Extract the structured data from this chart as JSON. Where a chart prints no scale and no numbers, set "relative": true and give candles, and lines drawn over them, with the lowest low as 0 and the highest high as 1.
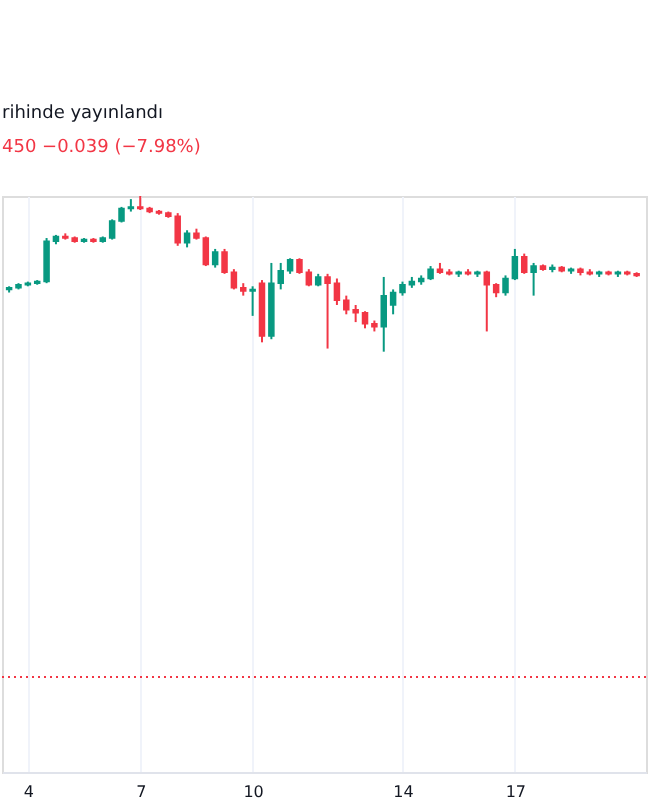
{
  "chart_data": {
    "type": "candlestick",
    "relative": true,
    "annotations": [
      "rihinde yayınlandı",
      "450  −0.039 (−7.98%)"
    ],
    "x": [
      3.5,
      3.75,
      4,
      4.25,
      4.5,
      4.75,
      5,
      5.25,
      5.5,
      5.75,
      6,
      6.25,
      6.5,
      6.75,
      7,
      7.25,
      7.5,
      7.75,
      8,
      8.25,
      8.5,
      8.75,
      9,
      9.25,
      9.5,
      9.75,
      10,
      10.25,
      10.5,
      10.75,
      11,
      11.25,
      11.5,
      11.75,
      12,
      12.25,
      12.5,
      12.75,
      13,
      13.25,
      13.5,
      13.75,
      14,
      14.25,
      14.5,
      14.75,
      15,
      15.25,
      15.5,
      15.75,
      16,
      16.25,
      16.5,
      16.75,
      17,
      17.25,
      17.5,
      17.75,
      18,
      18.25,
      18.5,
      18.75,
      19,
      19.25,
      19.5,
      19.75,
      20,
      20.25
    ],
    "ohlc": [
      [
        0.4,
        0.42,
        0.38,
        0.41
      ],
      [
        0.41,
        0.44,
        0.4,
        0.43
      ],
      [
        0.43,
        0.45,
        0.42,
        0.44
      ],
      [
        0.44,
        0.46,
        0.43,
        0.45
      ],
      [
        0.45,
        0.73,
        0.44,
        0.71
      ],
      [
        0.71,
        0.75,
        0.69,
        0.74
      ],
      [
        0.74,
        0.76,
        0.72,
        0.73
      ],
      [
        0.73,
        0.74,
        0.7,
        0.71
      ],
      [
        0.71,
        0.73,
        0.7,
        0.72
      ],
      [
        0.72,
        0.73,
        0.7,
        0.71
      ],
      [
        0.71,
        0.74,
        0.7,
        0.73
      ],
      [
        0.73,
        0.85,
        0.72,
        0.84
      ],
      [
        0.84,
        0.93,
        0.83,
        0.92
      ],
      [
        0.92,
        0.98,
        0.9,
        0.93
      ],
      [
        0.93,
        1.0,
        0.91,
        0.92
      ],
      [
        0.92,
        0.93,
        0.89,
        0.9
      ],
      [
        0.9,
        0.91,
        0.88,
        0.89
      ],
      [
        0.89,
        0.9,
        0.86,
        0.87
      ],
      [
        0.87,
        0.89,
        0.68,
        0.7
      ],
      [
        0.7,
        0.78,
        0.67,
        0.76
      ],
      [
        0.76,
        0.79,
        0.72,
        0.73
      ],
      [
        0.73,
        0.74,
        0.55,
        0.56
      ],
      [
        0.56,
        0.66,
        0.54,
        0.64
      ],
      [
        0.64,
        0.66,
        0.5,
        0.51
      ],
      [
        0.51,
        0.53,
        0.4,
        0.41
      ],
      [
        0.41,
        0.44,
        0.36,
        0.39
      ],
      [
        0.39,
        0.42,
        0.23,
        0.4
      ],
      [
        0.44,
        0.46,
        0.06,
        0.1
      ],
      [
        0.1,
        0.57,
        0.08,
        0.44
      ],
      [
        0.44,
        0.57,
        0.4,
        0.52
      ],
      [
        0.52,
        0.6,
        0.5,
        0.59
      ],
      [
        0.59,
        0.6,
        0.5,
        0.51
      ],
      [
        0.51,
        0.53,
        0.42,
        0.43
      ],
      [
        0.43,
        0.5,
        0.42,
        0.48
      ],
      [
        0.48,
        0.5,
        0.02,
        0.44
      ],
      [
        0.44,
        0.47,
        0.3,
        0.33
      ],
      [
        0.33,
        0.36,
        0.24,
        0.27
      ],
      [
        0.27,
        0.3,
        0.19,
        0.25
      ],
      [
        0.25,
        0.26,
        0.15,
        0.18
      ],
      [
        0.18,
        0.2,
        0.13,
        0.16
      ],
      [
        0.16,
        0.48,
        0.0,
        0.36
      ],
      [
        0.3,
        0.4,
        0.24,
        0.38
      ],
      [
        0.38,
        0.45,
        0.36,
        0.43
      ],
      [
        0.43,
        0.48,
        0.41,
        0.45
      ],
      [
        0.45,
        0.49,
        0.43,
        0.47
      ],
      [
        0.47,
        0.55,
        0.46,
        0.53
      ],
      [
        0.53,
        0.57,
        0.5,
        0.51
      ],
      [
        0.51,
        0.53,
        0.49,
        0.5
      ],
      [
        0.5,
        0.52,
        0.48,
        0.51
      ],
      [
        0.51,
        0.53,
        0.49,
        0.5
      ],
      [
        0.5,
        0.52,
        0.48,
        0.51
      ],
      [
        0.51,
        0.52,
        0.13,
        0.43
      ],
      [
        0.43,
        0.44,
        0.35,
        0.38
      ],
      [
        0.38,
        0.49,
        0.36,
        0.47
      ],
      [
        0.47,
        0.66,
        0.46,
        0.61
      ],
      [
        0.61,
        0.63,
        0.5,
        0.51
      ],
      [
        0.51,
        0.57,
        0.36,
        0.55
      ],
      [
        0.55,
        0.56,
        0.52,
        0.53
      ],
      [
        0.53,
        0.56,
        0.51,
        0.54
      ],
      [
        0.54,
        0.55,
        0.51,
        0.52
      ],
      [
        0.52,
        0.54,
        0.5,
        0.53
      ],
      [
        0.53,
        0.54,
        0.49,
        0.51
      ],
      [
        0.51,
        0.53,
        0.49,
        0.5
      ],
      [
        0.5,
        0.52,
        0.48,
        0.51
      ],
      [
        0.51,
        0.52,
        0.49,
        0.5
      ],
      [
        0.5,
        0.52,
        0.48,
        0.51
      ],
      [
        0.51,
        0.52,
        0.49,
        0.5
      ],
      [
        0.5,
        0.51,
        0.48,
        0.49
      ]
    ],
    "colors": [
      "#089981",
      "#089981",
      "#089981",
      "#089981",
      "#089981",
      "#089981",
      "#f23645",
      "#f23645",
      "#089981",
      "#f23645",
      "#089981",
      "#089981",
      "#089981",
      "#089981",
      "#f23645",
      "#f23645",
      "#f23645",
      "#f23645",
      "#f23645",
      "#089981",
      "#f23645",
      "#f23645",
      "#089981",
      "#f23645",
      "#f23645",
      "#f23645",
      "#089981",
      "#f23645",
      "#089981",
      "#089981",
      "#089981",
      "#f23645",
      "#f23645",
      "#089981",
      "#f23645",
      "#f23645",
      "#f23645",
      "#f23645",
      "#f23645",
      "#f23645",
      "#089981",
      "#089981",
      "#089981",
      "#089981",
      "#089981",
      "#089981",
      "#f23645",
      "#f23645",
      "#089981",
      "#f23645",
      "#089981",
      "#f23645",
      "#f23645",
      "#089981",
      "#089981",
      "#f23645",
      "#089981",
      "#f23645",
      "#089981",
      "#f23645",
      "#089981",
      "#f23645",
      "#f23645",
      "#089981",
      "#f23645",
      "#089981",
      "#f23645",
      "#f23645"
    ],
    "xlim": [
      3.31,
      20.5
    ],
    "xticks": [
      4,
      7,
      10,
      14,
      17
    ],
    "grid": "x",
    "ref_lines": [
      {
        "axis": "y",
        "value": -2.09,
        "color": "#f23645",
        "line_style": "dotted"
      }
    ]
  }
}
